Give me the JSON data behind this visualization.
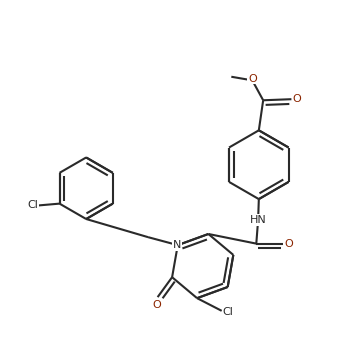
{
  "bg": "#ffffff",
  "bc": "#2a2a2a",
  "oc": "#8B2500",
  "lw": 1.5,
  "dbo": 0.013,
  "fs": 8,
  "figsize": [
    3.62,
    3.62
  ],
  "dpi": 100,
  "xlim": [
    0,
    1
  ],
  "ylim": [
    0,
    1
  ]
}
